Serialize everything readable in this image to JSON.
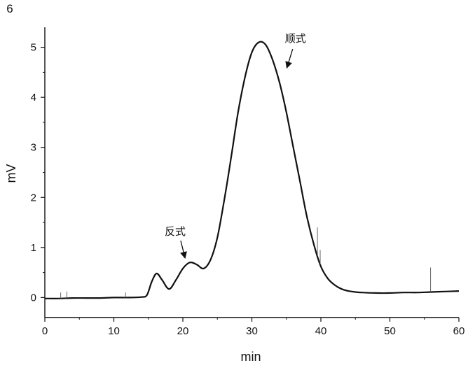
{
  "chart_data": {
    "type": "line",
    "title": "",
    "xlabel": "min",
    "ylabel": "mV",
    "xlim": [
      0,
      60
    ],
    "ylim": [
      -0.4,
      5.4
    ],
    "x_ticks": [
      0,
      10,
      20,
      30,
      40,
      50,
      60
    ],
    "y_ticks": [
      0,
      1,
      2,
      3,
      4,
      5
    ],
    "y_top_label": "6",
    "grid": false,
    "legend": "none",
    "line_color": "#111111",
    "series": [
      {
        "x": [
          0,
          2,
          4,
          6,
          8,
          10,
          12,
          14,
          14.8,
          15.5,
          16.2,
          17,
          18,
          19,
          20,
          21,
          22,
          23,
          24,
          25,
          26,
          27,
          28,
          29,
          30,
          31,
          32,
          33,
          34,
          35,
          36,
          37,
          38,
          39,
          40,
          41,
          42,
          43,
          44,
          45,
          46,
          48,
          50,
          52,
          54,
          56,
          58,
          60
        ],
        "y": [
          -0.02,
          -0.02,
          -0.01,
          -0.01,
          -0.01,
          0.0,
          0.0,
          0.01,
          0.05,
          0.32,
          0.48,
          0.35,
          0.17,
          0.35,
          0.58,
          0.7,
          0.66,
          0.58,
          0.75,
          1.2,
          1.95,
          2.8,
          3.7,
          4.4,
          4.9,
          5.1,
          5.05,
          4.75,
          4.3,
          3.7,
          3.0,
          2.3,
          1.6,
          1.05,
          0.62,
          0.38,
          0.25,
          0.17,
          0.13,
          0.11,
          0.1,
          0.09,
          0.09,
          0.1,
          0.1,
          0.11,
          0.12,
          0.13
        ]
      }
    ],
    "spikes": [
      {
        "x": 2.3,
        "y": 0.1
      },
      {
        "x": 3.2,
        "y": 0.12
      },
      {
        "x": 11.7,
        "y": 0.1
      },
      {
        "x": 39.5,
        "y": 1.4
      },
      {
        "x": 39.9,
        "y": 0.95
      },
      {
        "x": 55.9,
        "y": 0.6
      }
    ],
    "annotations": [
      {
        "label": "反式",
        "arrow_to": {
          "x": 20.3,
          "y": 0.8
        }
      },
      {
        "label": "顺式",
        "arrow_to": {
          "x": 35.1,
          "y": 4.6
        }
      }
    ]
  }
}
